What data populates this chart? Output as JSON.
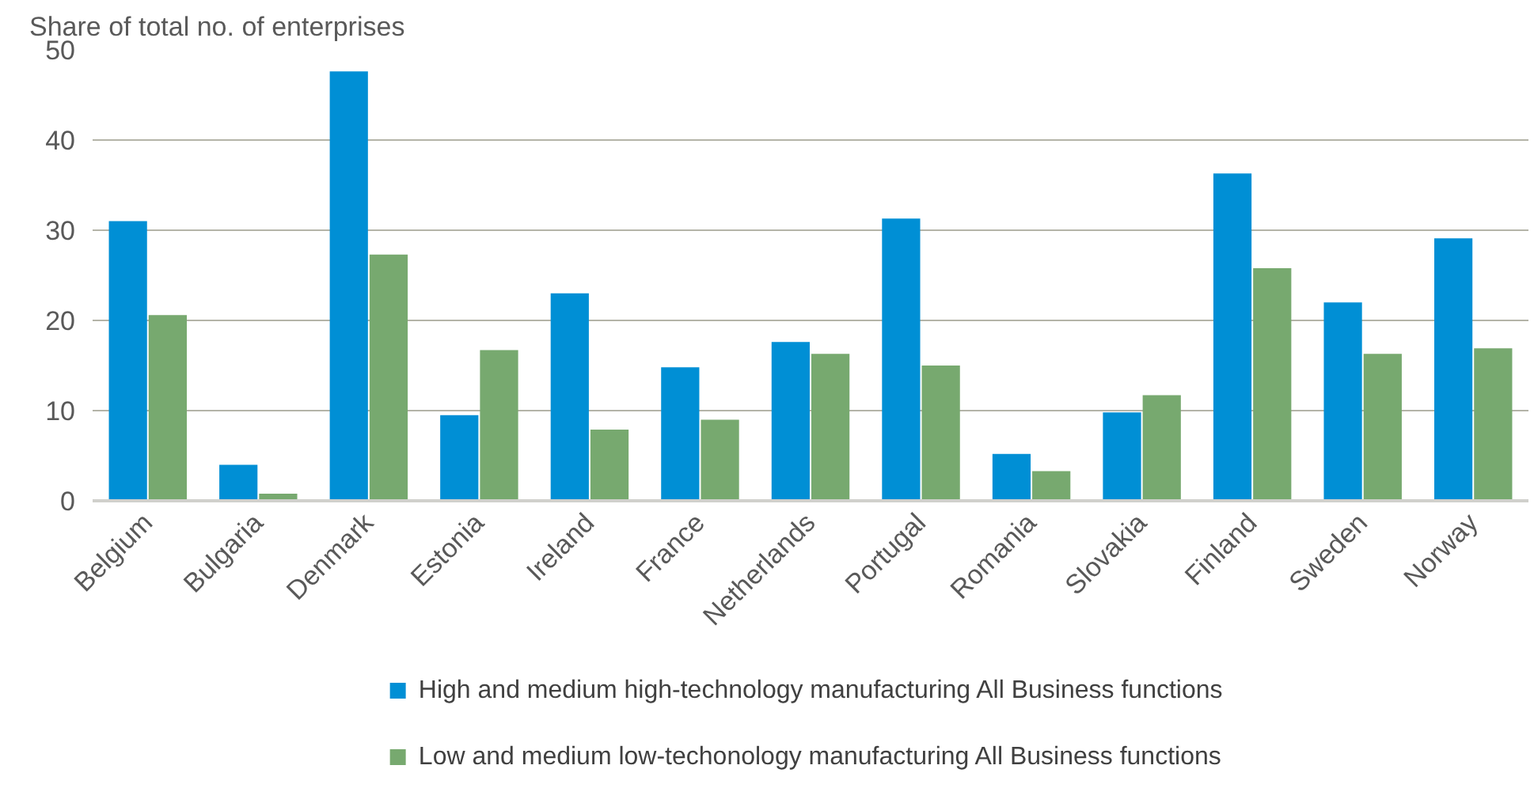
{
  "chart_data": {
    "type": "bar",
    "ylabel": "Share of total no. of enterprises",
    "categories": [
      "Belgium",
      "Bulgaria",
      "Denmark",
      "Estonia",
      "Ireland",
      "France",
      "Netherlands",
      "Portugal",
      "Romania",
      "Slovakia",
      "Finland",
      "Sweden",
      "Norway"
    ],
    "series": [
      {
        "name": "High and medium high-technology manufacturing All Business functions",
        "color": "#008fd5",
        "values": [
          31.0,
          4.0,
          47.6,
          9.5,
          23.0,
          14.8,
          17.6,
          31.3,
          5.2,
          9.8,
          36.3,
          22.0,
          29.1
        ]
      },
      {
        "name": "Low and medium low-techonology manufacturing All Business functions",
        "color": "#77a96f",
        "values": [
          20.6,
          0.8,
          27.3,
          16.7,
          7.9,
          9.0,
          16.3,
          15.0,
          3.3,
          11.7,
          25.8,
          16.3,
          16.9
        ]
      }
    ],
    "ylim": [
      0,
      50
    ],
    "yticks": [
      0,
      10,
      20,
      30,
      40,
      50
    ],
    "grid": "y",
    "legend": "bottom"
  }
}
